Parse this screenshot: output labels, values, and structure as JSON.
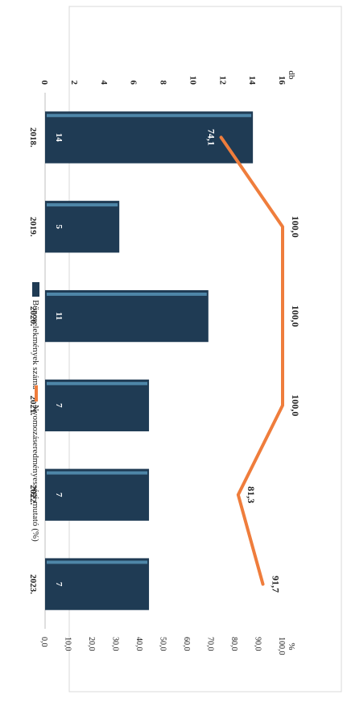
{
  "chart_data": {
    "type": "bar",
    "title": "",
    "categories": [
      "2018.",
      "2019.",
      "2020.",
      "2021.",
      "2022.",
      "2023."
    ],
    "series": [
      {
        "name": "Bűncselekmények száma",
        "type": "bar",
        "axis": "left",
        "values": [
          14,
          5,
          11,
          7,
          7,
          7
        ],
        "labels": [
          "14",
          "5",
          "11",
          "7",
          "7",
          "7"
        ]
      },
      {
        "name": "Nyomozáseredményességi mutató (%)",
        "type": "line",
        "axis": "right",
        "values": [
          74.1,
          100.0,
          100.0,
          100.0,
          81.3,
          91.7
        ],
        "labels": [
          "74,1",
          "100,0",
          "100,0",
          "100,0",
          "81,3",
          "91,7"
        ]
      }
    ],
    "y_left": {
      "unit": "db",
      "range": [
        0,
        16
      ],
      "ticks": [
        "0",
        "2",
        "4",
        "6",
        "8",
        "10",
        "12",
        "14",
        "16"
      ]
    },
    "y_right": {
      "unit": "%",
      "range": [
        0,
        100
      ],
      "ticks": [
        "0,0",
        "10,0",
        "20,0",
        "30,0",
        "40,0",
        "50,0",
        "60,0",
        "70,0",
        "80,0",
        "90,0",
        "100,0"
      ]
    },
    "legend_position": "top",
    "orientation": "page rotated 90° clockwise",
    "colors": {
      "bar": "#1f3b54",
      "bar_highlight": "#4e86a8",
      "line": "#ef7d3c",
      "text": "#222222"
    }
  }
}
